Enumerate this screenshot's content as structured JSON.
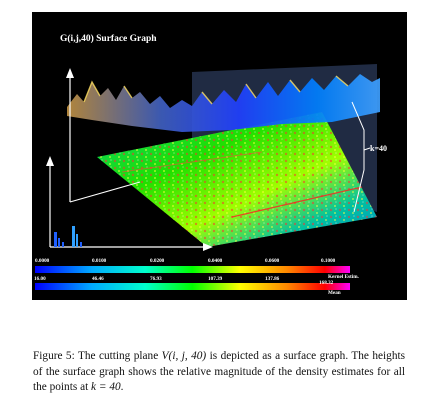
{
  "figure": {
    "title": "G(i,j,40) Surface Graph",
    "k_label": "k=40",
    "kernel_scale": {
      "ticks": [
        "0.0000",
        "0.0100",
        "0.0200",
        "0.0400",
        "0.0600",
        "0.1000"
      ],
      "label": "Kernel Estim."
    },
    "mean_scale": {
      "ticks": [
        "16.00",
        "46.46",
        "76.93",
        "107.39",
        "137.86",
        "168.32"
      ],
      "label": "Mean"
    },
    "colors": {
      "background": "#000000",
      "spectrum": [
        "#0000ff",
        "#00aaff",
        "#00ffcc",
        "#00ff00",
        "#ffff00",
        "#ff8800",
        "#ff0000",
        "#ff00ff"
      ]
    }
  },
  "caption": {
    "lead": "Figure 5: The cutting plane ",
    "math_plane": "V(i, j, 40)",
    "middle": " is depicted as a surface graph. The heights of the surface graph shows the relative magnitude of the density estimates for all the points at ",
    "math_k": "k = 40",
    "end": "."
  }
}
